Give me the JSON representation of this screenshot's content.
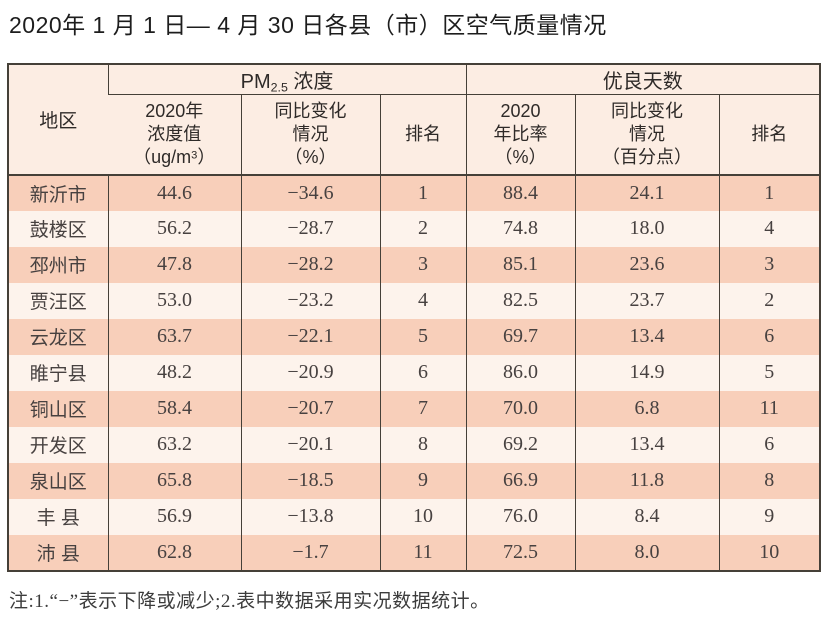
{
  "title": "2020年 1 月 1 日— 4 月 30 日各县（市）区空气质量情况",
  "note": "注:1.“−”表示下降或减少;2.表中数据采用实况数据统计。",
  "colors": {
    "border": "#454038",
    "row_band_salmon": "#f8cfba",
    "row_band_light": "#fdf3ec",
    "header_background": "#fcede3",
    "body_text": "#474140"
  },
  "table": {
    "header": {
      "region": "地区",
      "pm_group": {
        "main": "PM",
        "sub": "2.5",
        "rest": " 浓度"
      },
      "good_group": "优良天数",
      "pm_value_lines": "2020年\n浓度值",
      "pm_value_unit_open": "（ug/m",
      "pm_value_unit_sup": "3",
      "pm_value_unit_close": "）",
      "pm_change": "同比变化\n情况\n（%）",
      "pm_rank": "排名",
      "good_ratio": "2020\n年比率\n（%）",
      "good_change": "同比变化\n情况\n（百分点）",
      "good_rank": "排名"
    },
    "rows": [
      {
        "region": "新沂市",
        "pm_value": "44.6",
        "pm_change": "−34.6",
        "pm_rank": "1",
        "good_ratio": "88.4",
        "good_change": "24.1",
        "good_rank": "1"
      },
      {
        "region": "鼓楼区",
        "pm_value": "56.2",
        "pm_change": "−28.7",
        "pm_rank": "2",
        "good_ratio": "74.8",
        "good_change": "18.0",
        "good_rank": "4"
      },
      {
        "region": "邳州市",
        "pm_value": "47.8",
        "pm_change": "−28.2",
        "pm_rank": "3",
        "good_ratio": "85.1",
        "good_change": "23.6",
        "good_rank": "3"
      },
      {
        "region": "贾汪区",
        "pm_value": "53.0",
        "pm_change": "−23.2",
        "pm_rank": "4",
        "good_ratio": "82.5",
        "good_change": "23.7",
        "good_rank": "2"
      },
      {
        "region": "云龙区",
        "pm_value": "63.7",
        "pm_change": "−22.1",
        "pm_rank": "5",
        "good_ratio": "69.7",
        "good_change": "13.4",
        "good_rank": "6"
      },
      {
        "region": "睢宁县",
        "pm_value": "48.2",
        "pm_change": "−20.9",
        "pm_rank": "6",
        "good_ratio": "86.0",
        "good_change": "14.9",
        "good_rank": "5"
      },
      {
        "region": "铜山区",
        "pm_value": "58.4",
        "pm_change": "−20.7",
        "pm_rank": "7",
        "good_ratio": "70.0",
        "good_change": "6.8",
        "good_rank": "11"
      },
      {
        "region": "开发区",
        "pm_value": "63.2",
        "pm_change": "−20.1",
        "pm_rank": "8",
        "good_ratio": "69.2",
        "good_change": "13.4",
        "good_rank": "6"
      },
      {
        "region": "泉山区",
        "pm_value": "65.8",
        "pm_change": "−18.5",
        "pm_rank": "9",
        "good_ratio": "66.9",
        "good_change": "11.8",
        "good_rank": "8"
      },
      {
        "region": "丰 县",
        "pm_value": "56.9",
        "pm_change": "−13.8",
        "pm_rank": "10",
        "good_ratio": "76.0",
        "good_change": "8.4",
        "good_rank": "9"
      },
      {
        "region": "沛 县",
        "pm_value": "62.8",
        "pm_change": "−1.7",
        "pm_rank": "11",
        "good_ratio": "72.5",
        "good_change": "8.0",
        "good_rank": "10"
      }
    ]
  }
}
